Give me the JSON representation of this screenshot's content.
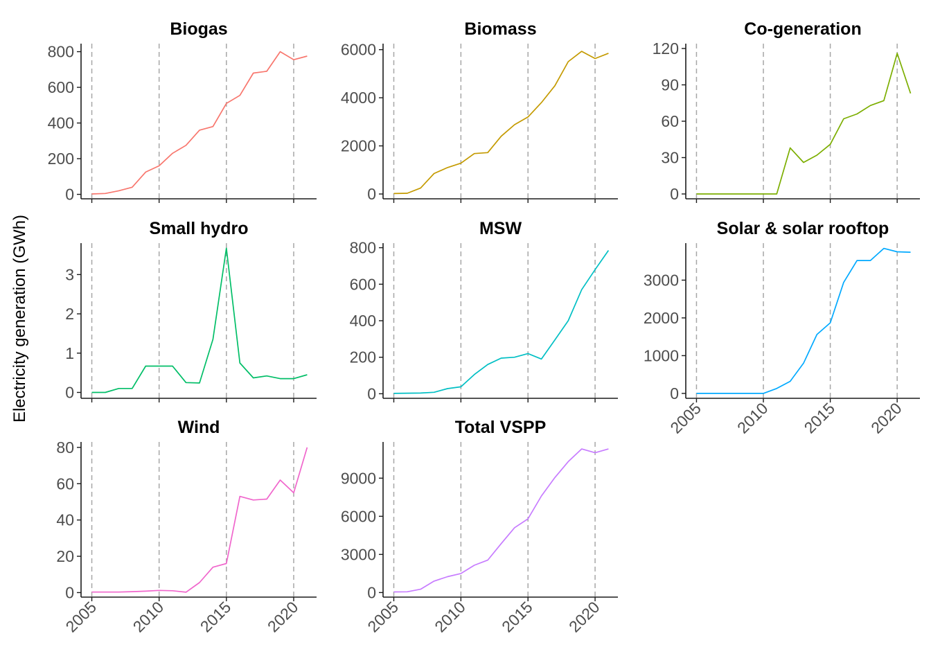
{
  "ylabel": "Electricity generation (GWh)",
  "chart_data": [
    {
      "type": "line",
      "title": "Biogas",
      "color": "#F8766D",
      "x": [
        2005,
        2006,
        2007,
        2008,
        2009,
        2010,
        2011,
        2012,
        2013,
        2014,
        2015,
        2016,
        2017,
        2018,
        2019,
        2020,
        2021
      ],
      "values": [
        2,
        5,
        20,
        40,
        125,
        160,
        230,
        275,
        360,
        380,
        510,
        555,
        680,
        690,
        800,
        755,
        775
      ],
      "ylim": [
        -25,
        845
      ],
      "yticks": [
        0,
        200,
        400,
        600,
        800
      ]
    },
    {
      "type": "line",
      "title": "Biomass",
      "color": "#C49A00",
      "x": [
        2005,
        2006,
        2007,
        2008,
        2009,
        2010,
        2011,
        2012,
        2013,
        2014,
        2015,
        2016,
        2017,
        2018,
        2019,
        2020,
        2021
      ],
      "values": [
        20,
        30,
        250,
        850,
        1100,
        1280,
        1680,
        1720,
        2400,
        2880,
        3200,
        3800,
        4500,
        5500,
        5930,
        5630,
        5850
      ],
      "ylim": [
        -200,
        6250
      ],
      "yticks": [
        0,
        2000,
        4000,
        6000
      ]
    },
    {
      "type": "line",
      "title": "Co-generation",
      "color": "#7CAE00",
      "x": [
        2005,
        2006,
        2007,
        2008,
        2009,
        2010,
        2011,
        2012,
        2013,
        2014,
        2015,
        2016,
        2017,
        2018,
        2019,
        2020,
        2021
      ],
      "values": [
        0,
        0,
        0,
        0,
        0,
        0,
        0,
        38,
        26,
        32,
        41,
        62,
        66,
        73,
        77,
        116,
        83
      ],
      "ylim": [
        -4,
        124
      ],
      "yticks": [
        0,
        30,
        60,
        90,
        120
      ]
    },
    {
      "type": "line",
      "title": "Small hydro",
      "color": "#00BE67",
      "x": [
        2005,
        2006,
        2007,
        2008,
        2009,
        2010,
        2011,
        2012,
        2013,
        2014,
        2015,
        2016,
        2017,
        2018,
        2019,
        2020,
        2021
      ],
      "values": [
        0,
        0,
        0.1,
        0.1,
        0.67,
        0.67,
        0.67,
        0.25,
        0.24,
        1.35,
        3.67,
        0.75,
        0.37,
        0.42,
        0.35,
        0.35,
        0.45
      ],
      "ylim": [
        -0.15,
        3.8
      ],
      "yticks": [
        0,
        1,
        2,
        3
      ]
    },
    {
      "type": "line",
      "title": "MSW",
      "color": "#00BFC4",
      "x": [
        2005,
        2006,
        2007,
        2008,
        2009,
        2010,
        2011,
        2012,
        2013,
        2014,
        2015,
        2016,
        2017,
        2018,
        2019,
        2020,
        2021
      ],
      "values": [
        2,
        3,
        4,
        8,
        28,
        38,
        105,
        160,
        195,
        200,
        220,
        190,
        295,
        400,
        570,
        680,
        785
      ],
      "ylim": [
        -25,
        825
      ],
      "yticks": [
        0,
        200,
        400,
        600,
        800
      ]
    },
    {
      "type": "line",
      "title": "Solar & solar rooftop",
      "color": "#00A9FF",
      "x": [
        2005,
        2006,
        2007,
        2008,
        2009,
        2010,
        2011,
        2012,
        2013,
        2014,
        2015,
        2016,
        2017,
        2018,
        2019,
        2020,
        2021
      ],
      "values": [
        0,
        0,
        0,
        0,
        0,
        0,
        130,
        320,
        800,
        1560,
        1870,
        2940,
        3520,
        3520,
        3840,
        3750,
        3740
      ],
      "ylim": [
        -130,
        3980
      ],
      "yticks": [
        0,
        1000,
        2000,
        3000
      ]
    },
    {
      "type": "line",
      "title": "Wind",
      "color": "#F066CC",
      "x": [
        2005,
        2006,
        2007,
        2008,
        2009,
        2010,
        2011,
        2012,
        2013,
        2014,
        2015,
        2016,
        2017,
        2018,
        2019,
        2020,
        2021
      ],
      "values": [
        0.3,
        0.3,
        0.3,
        0.5,
        0.8,
        1.2,
        1.0,
        0.2,
        5.5,
        14,
        16,
        53,
        51,
        51.5,
        62,
        55,
        80
      ],
      "ylim": [
        -2.5,
        83
      ],
      "yticks": [
        0,
        20,
        40,
        60,
        80
      ]
    },
    {
      "type": "line",
      "title": "Total VSPP",
      "color": "#C77CFF",
      "x": [
        2005,
        2006,
        2007,
        2008,
        2009,
        2010,
        2011,
        2012,
        2013,
        2014,
        2015,
        2016,
        2017,
        2018,
        2019,
        2020,
        2021
      ],
      "values": [
        50,
        60,
        260,
        900,
        1250,
        1500,
        2150,
        2550,
        3850,
        5100,
        5800,
        7600,
        9050,
        10300,
        11300,
        11000,
        11300
      ],
      "ylim": [
        -360,
        11850
      ],
      "yticks": [
        0,
        3000,
        6000,
        9000
      ]
    }
  ],
  "shared_x": {
    "xlim": [
      2004.2,
      2021.7
    ],
    "xticks": [
      2005,
      2010,
      2015,
      2020
    ],
    "vlines": [
      2005,
      2010,
      2015,
      2020
    ]
  }
}
